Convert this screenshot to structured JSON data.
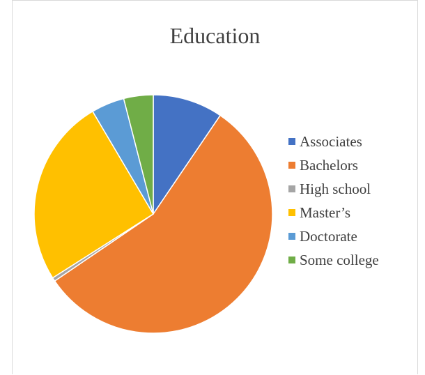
{
  "chart_data": {
    "type": "pie",
    "title": "Education",
    "categories": [
      "Associates",
      "Bachelors",
      "High school",
      "Master’s",
      "Doctorate",
      "Some college"
    ],
    "values": [
      9.5,
      56.0,
      0.5,
      25.5,
      4.5,
      4.0
    ],
    "colors": [
      "#4472C4",
      "#ED7D31",
      "#A5A5A5",
      "#FFC000",
      "#5B9BD5",
      "#70AD47"
    ],
    "legend_position": "right",
    "start_angle": "12 o'clock",
    "direction": "clockwise"
  }
}
